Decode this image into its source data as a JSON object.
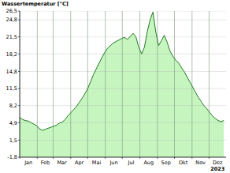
{
  "chart_data": {
    "type": "area",
    "ylabel": "Wassertemperatur [°C]",
    "xlabel": "2023",
    "color": "#1f7a1f",
    "grid": true,
    "x": [
      1,
      6,
      11,
      16,
      21,
      26,
      31,
      36,
      41,
      46,
      51,
      56,
      61,
      66,
      71,
      76,
      81,
      86,
      91,
      96,
      101,
      106,
      111,
      116,
      121,
      126,
      131,
      136,
      141,
      146,
      151,
      156,
      161,
      166,
      171,
      176,
      181,
      186,
      191,
      196,
      201,
      206,
      211,
      216,
      221,
      226,
      231,
      236,
      241,
      246,
      251,
      256,
      261,
      266,
      271,
      276,
      281,
      286,
      291,
      296,
      301,
      306,
      311,
      316,
      321,
      326,
      331,
      336,
      341,
      346,
      351,
      356,
      361
    ],
    "values": [
      5.9,
      5.5,
      5.3,
      5.2,
      4.9,
      4.6,
      4.3,
      3.7,
      3.4,
      3.6,
      3.8,
      4.0,
      4.2,
      4.4,
      4.8,
      5.0,
      5.5,
      6.2,
      6.8,
      7.4,
      8.0,
      8.8,
      9.6,
      10.5,
      11.5,
      12.8,
      14.2,
      15.3,
      16.4,
      17.5,
      18.5,
      19.3,
      19.8,
      20.3,
      20.6,
      20.9,
      21.2,
      21.4,
      21.0,
      21.6,
      22.2,
      21.5,
      19.5,
      18.2,
      19.5,
      22.5,
      24.8,
      26.3,
      22.5,
      19.8,
      20.8,
      21.8,
      20.5,
      18.8,
      17.8,
      17.0,
      16.5,
      15.6,
      14.8,
      13.8,
      12.8,
      11.8,
      10.8,
      9.8,
      9.0,
      8.2,
      7.6,
      6.9,
      6.2,
      5.7,
      5.3,
      5.1,
      5.3
    ],
    "xlim": [
      1,
      365
    ],
    "xticks": [
      {
        "value": 1,
        "label": "Jan"
      },
      {
        "value": 32,
        "label": "Feb"
      },
      {
        "value": 60,
        "label": "Mar"
      },
      {
        "value": 91,
        "label": "Apr"
      },
      {
        "value": 121,
        "label": "Mai"
      },
      {
        "value": 152,
        "label": "Jun"
      },
      {
        "value": 182,
        "label": "Jul"
      },
      {
        "value": 213,
        "label": "Aug"
      },
      {
        "value": 244,
        "label": "Sep"
      },
      {
        "value": 274,
        "label": "Okt"
      },
      {
        "value": 305,
        "label": "Nov"
      },
      {
        "value": 335,
        "label": "Dez"
      }
    ],
    "ylim": [
      -1.8,
      26.5
    ],
    "yticks": [
      {
        "value": -1.8,
        "label": "-1,8"
      },
      {
        "value": 1.5,
        "label": "1,5"
      },
      {
        "value": 4.9,
        "label": "4,9"
      },
      {
        "value": 8.2,
        "label": "8,2"
      },
      {
        "value": 11.5,
        "label": "11,5"
      },
      {
        "value": 14.8,
        "label": "14,8"
      },
      {
        "value": 18.2,
        "label": "18,2"
      },
      {
        "value": 21.5,
        "label": "21,5"
      },
      {
        "value": 24.8,
        "label": "24,8"
      },
      {
        "value": 26.5,
        "label": "26,5"
      }
    ]
  }
}
